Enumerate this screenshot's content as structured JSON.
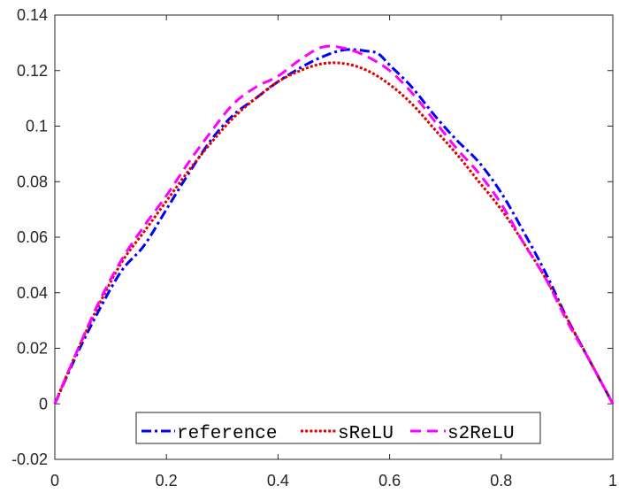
{
  "chart_data": {
    "type": "line",
    "title": "",
    "xlabel": "",
    "ylabel": "",
    "xlim": [
      0,
      1
    ],
    "ylim": [
      -0.02,
      0.14
    ],
    "x_ticks": [
      0,
      0.2,
      0.4,
      0.6,
      0.8,
      1
    ],
    "x_tick_labels": [
      "0",
      "0.2",
      "0.4",
      "0.6",
      "0.8",
      "1"
    ],
    "y_ticks": [
      -0.02,
      0,
      0.02,
      0.04,
      0.06,
      0.08,
      0.1,
      0.12,
      0.14
    ],
    "y_tick_labels": [
      "-0.02",
      "0",
      "0.02",
      "0.04",
      "0.06",
      "0.08",
      "0.1",
      "0.12",
      "0.14"
    ],
    "grid": false,
    "legend_position": "bottom-center",
    "series": [
      {
        "name": "reference",
        "color": "#0000ff",
        "dash": "dash-dot",
        "points": [
          [
            0,
            0
          ],
          [
            0.04,
            0.018
          ],
          [
            0.08,
            0.034
          ],
          [
            0.12,
            0.048
          ],
          [
            0.16,
            0.057
          ],
          [
            0.2,
            0.07
          ],
          [
            0.24,
            0.083
          ],
          [
            0.28,
            0.095
          ],
          [
            0.32,
            0.104
          ],
          [
            0.36,
            0.11
          ],
          [
            0.4,
            0.116
          ],
          [
            0.44,
            0.121
          ],
          [
            0.48,
            0.125
          ],
          [
            0.52,
            0.1275
          ],
          [
            0.56,
            0.127
          ],
          [
            0.58,
            0.126
          ],
          [
            0.6,
            0.122
          ],
          [
            0.64,
            0.114
          ],
          [
            0.68,
            0.104
          ],
          [
            0.72,
            0.095
          ],
          [
            0.76,
            0.087
          ],
          [
            0.8,
            0.076
          ],
          [
            0.84,
            0.062
          ],
          [
            0.88,
            0.047
          ],
          [
            0.92,
            0.03
          ],
          [
            0.96,
            0.015
          ],
          [
            1,
            0
          ]
        ]
      },
      {
        "name": "sReLU",
        "color": "#e00000",
        "dash": "dotted",
        "points": [
          [
            0,
            0
          ],
          [
            0.04,
            0.019
          ],
          [
            0.08,
            0.036
          ],
          [
            0.12,
            0.051
          ],
          [
            0.16,
            0.062
          ],
          [
            0.2,
            0.073
          ],
          [
            0.24,
            0.084
          ],
          [
            0.28,
            0.094
          ],
          [
            0.32,
            0.103
          ],
          [
            0.36,
            0.11
          ],
          [
            0.4,
            0.116
          ],
          [
            0.44,
            0.12
          ],
          [
            0.48,
            0.1225
          ],
          [
            0.52,
            0.1225
          ],
          [
            0.56,
            0.12
          ],
          [
            0.6,
            0.115
          ],
          [
            0.64,
            0.108
          ],
          [
            0.68,
            0.099
          ],
          [
            0.72,
            0.09
          ],
          [
            0.76,
            0.08
          ],
          [
            0.8,
            0.07
          ],
          [
            0.84,
            0.058
          ],
          [
            0.88,
            0.045
          ],
          [
            0.92,
            0.03
          ],
          [
            0.96,
            0.015
          ],
          [
            1,
            0
          ]
        ]
      },
      {
        "name": "s2ReLU",
        "color": "#ff00ff",
        "dash": "dashed",
        "points": [
          [
            0,
            0
          ],
          [
            0.04,
            0.019
          ],
          [
            0.08,
            0.037
          ],
          [
            0.12,
            0.052
          ],
          [
            0.16,
            0.064
          ],
          [
            0.2,
            0.075
          ],
          [
            0.24,
            0.087
          ],
          [
            0.28,
            0.098
          ],
          [
            0.32,
            0.108
          ],
          [
            0.36,
            0.114
          ],
          [
            0.4,
            0.118
          ],
          [
            0.44,
            0.124
          ],
          [
            0.48,
            0.1285
          ],
          [
            0.52,
            0.128
          ],
          [
            0.56,
            0.125
          ],
          [
            0.6,
            0.12
          ],
          [
            0.64,
            0.112
          ],
          [
            0.68,
            0.102
          ],
          [
            0.72,
            0.092
          ],
          [
            0.76,
            0.083
          ],
          [
            0.8,
            0.072
          ],
          [
            0.84,
            0.058
          ],
          [
            0.88,
            0.045
          ],
          [
            0.92,
            0.029
          ],
          [
            0.96,
            0.015
          ],
          [
            1,
            0
          ]
        ]
      }
    ]
  }
}
